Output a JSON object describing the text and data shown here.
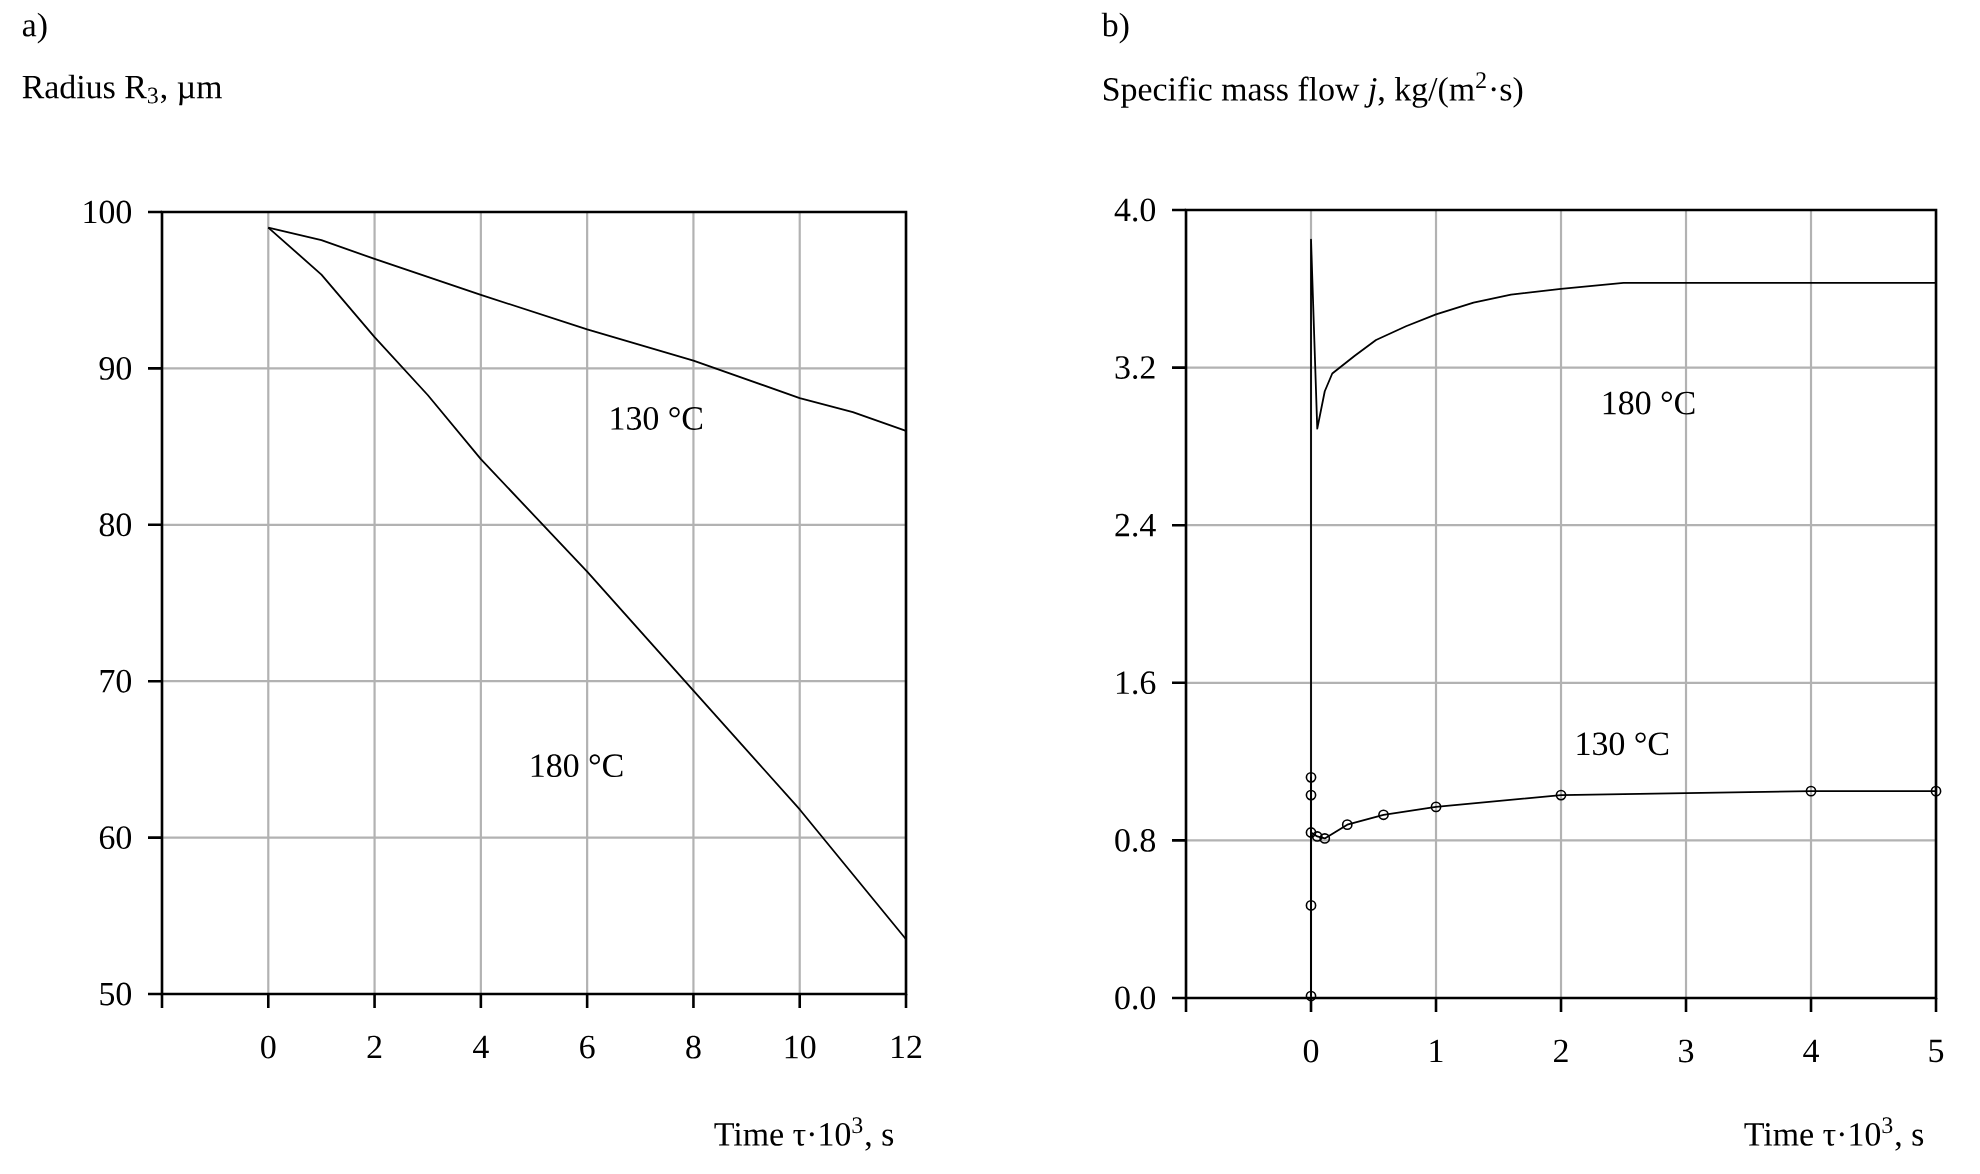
{
  "chart_data": [
    {
      "type": "line",
      "title": "a)",
      "ylabel": "Radius R$_{3}$, µm",
      "xlabel": "Time τ·10$^{3}$, s",
      "xlim": [
        -2,
        12
      ],
      "ylim": [
        50,
        100
      ],
      "xticks": [
        {
          "value": -2,
          "label": null
        },
        0,
        2,
        4,
        6,
        8,
        10,
        12
      ],
      "yticks": [
        50,
        60,
        70,
        80,
        90,
        100
      ],
      "grid": true,
      "series": [
        {
          "x": [
            0,
            1,
            2,
            4,
            6,
            8,
            10,
            11,
            12
          ],
          "values": [
            99,
            98.2,
            97,
            94.7,
            92.5,
            90.5,
            88.1,
            87.2,
            86
          ],
          "color": "#000000"
        },
        {
          "x": [
            0,
            1,
            2,
            3,
            4,
            6,
            8,
            10,
            12
          ],
          "values": [
            99,
            96,
            92,
            88.3,
            84.2,
            77,
            69.4,
            61.8,
            53.5
          ],
          "color": "#000000"
        }
      ],
      "annotations": [
        "130 °C",
        "180 °C"
      ]
    },
    {
      "type": "line",
      "title": "b)",
      "ylabel": "Specific mass flow *j*, kg/(m$^{2}$·s)",
      "xlabel": "Time τ·10$^{3}$, s",
      "xlim": [
        -1,
        5
      ],
      "ylim": [
        0,
        4
      ],
      "xticks": [
        {
          "value": -1,
          "label": null
        },
        0,
        1,
        2,
        3,
        4,
        5
      ],
      "yticks": [
        {
          "value": 0,
          "label": "0.0"
        },
        0.8,
        1.6,
        2.4,
        3.2,
        {
          "value": 4,
          "label": "4.0"
        }
      ],
      "grid": true,
      "series": [
        {
          "x": [
            0,
            0,
            0.05,
            0.11,
            0.17,
            0.35,
            0.52,
            0.76,
            1.0,
            1.3,
            1.6,
            2.0,
            2.5,
            5
          ],
          "values": [
            0,
            3.85,
            2.89,
            3.08,
            3.17,
            3.26,
            3.34,
            3.41,
            3.47,
            3.53,
            3.57,
            3.6,
            3.63,
            3.63
          ],
          "color": "#000000"
        },
        {
          "x": [
            0,
            0,
            0,
            0,
            0,
            0.05,
            0.11,
            0.29,
            0.58,
            1,
            2,
            4,
            5
          ],
          "values": [
            0.01,
            0.47,
            1.03,
            1.12,
            0.84,
            0.82,
            0.81,
            0.88,
            0.93,
            0.97,
            1.03,
            1.05,
            1.05
          ],
          "color": "#000000",
          "marker": "circle"
        }
      ],
      "annotations": [
        "180 °C",
        "130 °C"
      ]
    }
  ]
}
